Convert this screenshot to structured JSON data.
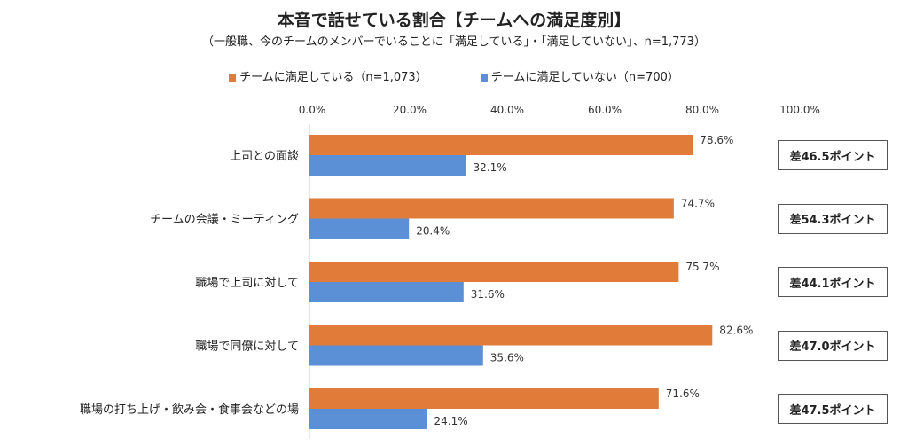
{
  "chart_data": {
    "type": "bar",
    "orientation": "horizontal",
    "title": "本音で話せている割合【チームへの満足度別】",
    "subtitle": "（一般職、今のチームのメンバーでいることに「満足している」・「満足していない」、n=1,773）",
    "categories": [
      "上司との面談",
      "チームの会議・ミーティング",
      "職場で上司に対して",
      "職場で同僚に対して",
      "職場の打ち上げ・飲み会・食事会などの場"
    ],
    "series": [
      {
        "name": "チームに満足している（n=1,073）",
        "color": "#E07B39",
        "values": [
          78.6,
          74.7,
          75.7,
          82.6,
          71.6
        ]
      },
      {
        "name": "チームに満足していない（n=700）",
        "color": "#5B8FD6",
        "values": [
          32.1,
          20.4,
          31.6,
          35.6,
          24.1
        ]
      }
    ],
    "data_labels": [
      [
        "78.6%",
        "74.7%",
        "75.7%",
        "82.6%",
        "71.6%"
      ],
      [
        "32.1%",
        "20.4%",
        "31.6%",
        "35.6%",
        "24.1%"
      ]
    ],
    "xlim": [
      0,
      100
    ],
    "xticks": [
      "0.0%",
      "20.0%",
      "40.0%",
      "60.0%",
      "80.0%",
      "100.0%"
    ],
    "legend_position": "top",
    "grid": false,
    "annotations": [
      "差46.5ポイント",
      "差54.3ポイント",
      "差44.1ポイント",
      "差47.0ポイント",
      "差47.5ポイント"
    ]
  }
}
